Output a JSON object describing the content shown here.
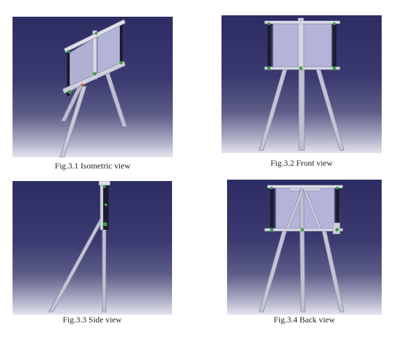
{
  "figures": [
    {
      "caption": "Fig.3.1 Isometric view"
    },
    {
      "caption": "Fig.3.2 Front view"
    },
    {
      "caption": "Fig.3.3 Side view"
    },
    {
      "caption": "Fig.3.4 Back view"
    }
  ],
  "colors": {
    "background_top": "#2d2d63",
    "background_bottom": "#e4e4ee",
    "board": "#b4b4d8",
    "frame": "#e0e0ea",
    "rail": "#1c1c2c",
    "joint": "#3aa23a"
  }
}
